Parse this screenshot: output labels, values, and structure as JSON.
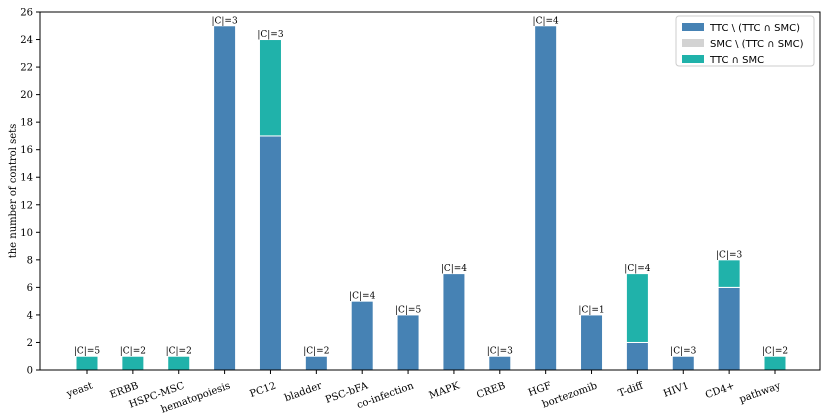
{
  "chart_data": {
    "type": "bar",
    "stacked": true,
    "ylabel": "the number of control sets",
    "xlabel": "",
    "ylim": [
      0,
      26
    ],
    "yticks": [
      0,
      2,
      4,
      6,
      8,
      10,
      12,
      14,
      16,
      18,
      20,
      22,
      24,
      26
    ],
    "categories": [
      "yeast",
      "ERBB",
      "HSPC-MSC",
      "hematopoiesis",
      "PC12",
      "bladder",
      "PSC-bFA",
      "co-infection",
      "MAPK",
      "CREB",
      "HGF",
      "bortezomib",
      "T-diff",
      "HIV1",
      "CD4+",
      "pathway"
    ],
    "series": [
      {
        "name": "TTC \\ (TTC ∩ SMC)",
        "color": "#4682b4",
        "values": [
          0,
          0,
          0,
          25,
          17,
          1,
          5,
          4,
          7,
          1,
          25,
          4,
          2,
          1,
          6,
          0
        ]
      },
      {
        "name": "SMC \\ (TTC ∩ SMC)",
        "color": "#d3d3d3",
        "values": [
          0,
          0,
          0,
          0,
          0,
          0,
          0,
          0,
          0,
          0,
          0,
          0,
          0,
          0,
          0,
          0
        ]
      },
      {
        "name": "TTC ∩ SMC",
        "color": "#20b2aa",
        "values": [
          1,
          1,
          1,
          0,
          7,
          0,
          0,
          0,
          0,
          0,
          0,
          0,
          5,
          0,
          2,
          1
        ]
      }
    ],
    "bar_labels": [
      "|C|=5",
      "|C|=2",
      "|C|=2",
      "|C|=3",
      "|C|=3",
      "|C|=2",
      "|C|=4",
      "|C|=5",
      "|C|=4",
      "|C|=3",
      "|C|=4",
      "|C|=1",
      "|C|=4",
      "|C|=3",
      "|C|=3",
      "|C|=2"
    ],
    "legend_position": "top-right",
    "grid": false
  }
}
